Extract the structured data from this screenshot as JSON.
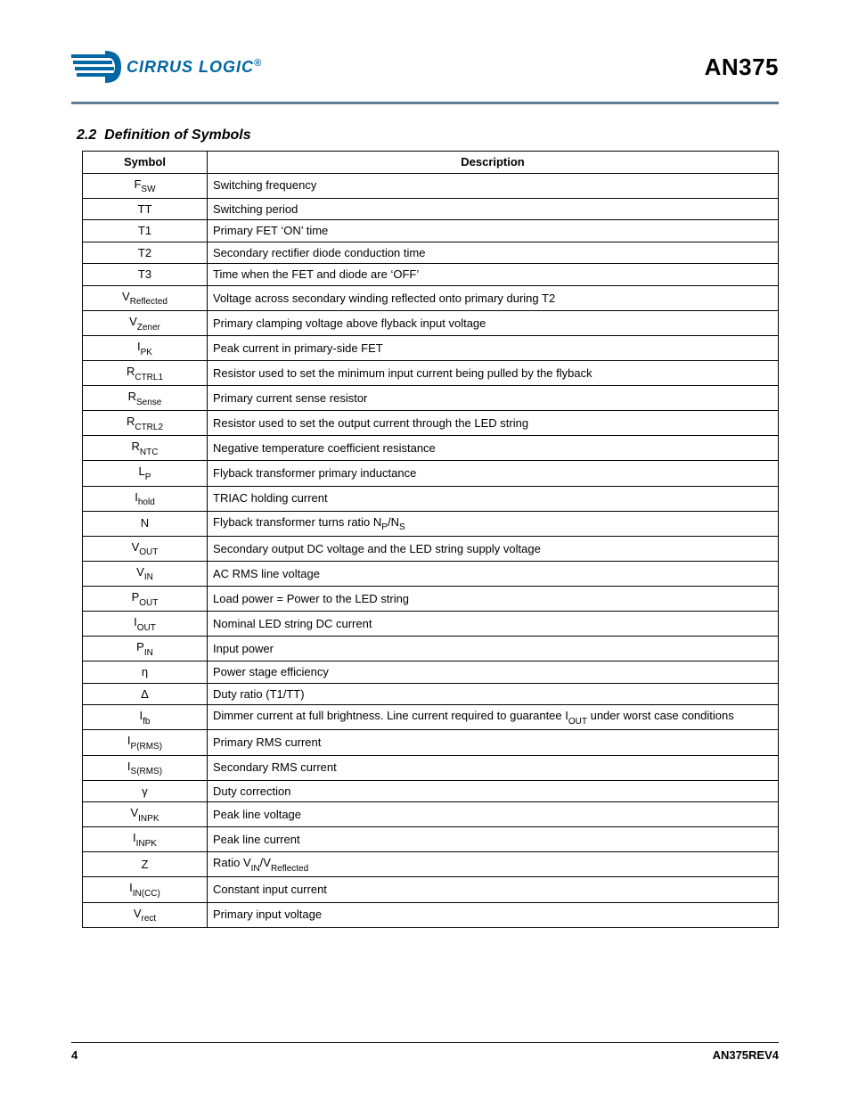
{
  "header": {
    "company_name": "CIRRUS LOGIC",
    "doc_id": "AN375"
  },
  "colors": {
    "rule": "#5a7c96",
    "logo_primary": "#0066a4",
    "text": "#000000",
    "background": "#ffffff"
  },
  "section": {
    "number": "2.2",
    "title": "Definition of Symbols"
  },
  "table": {
    "columns": [
      "Symbol",
      "Description"
    ],
    "rows": [
      {
        "sym_base": "F",
        "sym_sub": "SW",
        "desc": "Switching frequency"
      },
      {
        "sym_base": "TT",
        "sym_sub": "",
        "desc": "Switching period"
      },
      {
        "sym_base": "T1",
        "sym_sub": "",
        "desc": "Primary FET ‘ON’ time"
      },
      {
        "sym_base": "T2",
        "sym_sub": "",
        "desc": "Secondary rectifier diode conduction time"
      },
      {
        "sym_base": "T3",
        "sym_sub": "",
        "desc": "Time when the FET and diode are ‘OFF’"
      },
      {
        "sym_base": "V",
        "sym_sub": "Reflected",
        "desc": "Voltage across secondary winding reflected onto primary during T2"
      },
      {
        "sym_base": "V",
        "sym_sub": "Zener",
        "desc": "Primary clamping voltage above flyback input voltage"
      },
      {
        "sym_base": "I",
        "sym_sub": "PK",
        "desc": "Peak current in primary-side FET"
      },
      {
        "sym_base": "R",
        "sym_sub": "CTRL1",
        "desc": "Resistor used to set the minimum input current being pulled by the flyback"
      },
      {
        "sym_base": "R",
        "sym_sub": "Sense",
        "desc": "Primary current sense resistor"
      },
      {
        "sym_base": "R",
        "sym_sub": "CTRL2",
        "desc": "Resistor used to set the output current through the LED string"
      },
      {
        "sym_base": "R",
        "sym_sub": "NTC",
        "desc": "Negative temperature coefficient resistance"
      },
      {
        "sym_base": "L",
        "sym_sub": "P",
        "desc": "Flyback transformer primary inductance"
      },
      {
        "sym_base": "I",
        "sym_sub": "hold",
        "desc": "TRIAC holding current"
      },
      {
        "sym_base": "N",
        "sym_sub": "",
        "desc_html": "Flyback transformer turns ratio N<span class=\"sub\">P</span>/N<span class=\"sub\">S</span>"
      },
      {
        "sym_base": "V",
        "sym_sub": "OUT",
        "desc": "Secondary output DC voltage and the LED string supply voltage"
      },
      {
        "sym_base": "V",
        "sym_sub": "IN",
        "desc": "AC RMS line voltage"
      },
      {
        "sym_base": "P",
        "sym_sub": "OUT",
        "desc": "Load power = Power to the LED string"
      },
      {
        "sym_base": "I",
        "sym_sub": "OUT",
        "desc": "Nominal LED string DC current"
      },
      {
        "sym_base": "P",
        "sym_sub": "IN",
        "desc": "Input power"
      },
      {
        "sym_base": "η",
        "sym_sub": "",
        "desc": "Power stage efficiency"
      },
      {
        "sym_base": "Δ",
        "sym_sub": "",
        "desc": "Duty ratio (T1/TT)"
      },
      {
        "sym_base": "I",
        "sym_sub": "fb",
        "desc_html": "Dimmer current at full brightness. Line current required to guarantee I<span class=\"sub\">OUT</span> under worst case conditions"
      },
      {
        "sym_base": "I",
        "sym_sub": "P(RMS)",
        "desc": "Primary RMS current"
      },
      {
        "sym_base": "I",
        "sym_sub": "S(RMS)",
        "desc": "Secondary RMS current"
      },
      {
        "sym_base": "γ",
        "sym_sub": "",
        "desc": "Duty correction"
      },
      {
        "sym_base": "V",
        "sym_sub": "INPK",
        "desc": "Peak line voltage"
      },
      {
        "sym_base": "I",
        "sym_sub": "INPK",
        "desc": "Peak line current"
      },
      {
        "sym_base": "Z",
        "sym_sub": "",
        "desc_html": "Ratio V<span class=\"sub\">IN</span>/V<span class=\"sub\">Reflected</span>"
      },
      {
        "sym_base": "I",
        "sym_sub": "IN(CC)",
        "desc": "Constant input current"
      },
      {
        "sym_base": "V",
        "sym_sub": "rect",
        "desc": "Primary input voltage"
      }
    ]
  },
  "footer": {
    "page_number": "4",
    "rev": "AN375REV4"
  }
}
